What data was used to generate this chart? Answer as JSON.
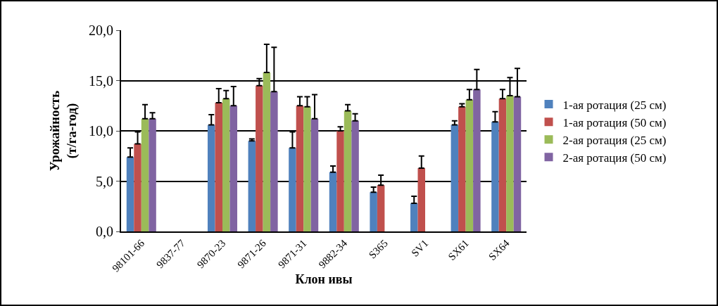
{
  "chart_data": {
    "type": "bar",
    "xlabel": "Клон ивы",
    "ylabel": "Урожайность\n(т/га-год)",
    "categories": [
      "98101-66",
      "9837-77",
      "9870-23",
      "9871-26",
      "9871-31",
      "9882-34",
      "S365",
      "SV1",
      "SX61",
      "SX64"
    ],
    "series": [
      {
        "name": "1-ая ротация (25 см)",
        "color": "#4f81bd",
        "values": [
          7.4,
          null,
          10.6,
          9.0,
          8.3,
          5.9,
          3.9,
          2.8,
          10.6,
          10.9
        ],
        "errors": [
          [
            7.4,
            8.3
          ],
          null,
          [
            10.6,
            11.6
          ],
          [
            9.0,
            9.2
          ],
          [
            8.3,
            9.9
          ],
          [
            5.9,
            6.5
          ],
          [
            3.9,
            4.4
          ],
          [
            2.8,
            3.5
          ],
          [
            10.6,
            11.0
          ],
          [
            10.9,
            11.9
          ]
        ]
      },
      {
        "name": "1-ая ротация (50 см)",
        "color": "#c0504d",
        "values": [
          8.7,
          null,
          12.8,
          14.5,
          12.5,
          10.0,
          4.6,
          6.3,
          12.4,
          13.2
        ],
        "errors": [
          [
            8.7,
            9.9
          ],
          null,
          [
            12.8,
            14.2
          ],
          [
            14.5,
            15.2
          ],
          [
            12.5,
            13.4
          ],
          [
            10.0,
            10.4
          ],
          [
            4.6,
            5.6
          ],
          [
            6.3,
            7.5
          ],
          [
            12.4,
            12.7
          ],
          [
            13.2,
            14.1
          ]
        ]
      },
      {
        "name": "2-ая ротация (25 см)",
        "color": "#9bbb59",
        "values": [
          11.2,
          null,
          13.2,
          15.8,
          12.4,
          12.0,
          null,
          null,
          13.1,
          13.5
        ],
        "errors": [
          [
            11.2,
            12.6
          ],
          null,
          [
            13.2,
            14.0
          ],
          [
            15.8,
            18.6
          ],
          [
            12.4,
            13.4
          ],
          [
            12.0,
            12.6
          ],
          null,
          null,
          [
            13.1,
            14.1
          ],
          [
            13.5,
            15.3
          ]
        ]
      },
      {
        "name": "2-ая ротация (50 см)",
        "color": "#8064a2",
        "values": [
          11.2,
          null,
          12.5,
          13.9,
          11.2,
          11.0,
          null,
          null,
          14.1,
          13.4
        ],
        "errors": [
          [
            11.2,
            11.8
          ],
          null,
          [
            12.5,
            14.4
          ],
          [
            13.9,
            18.3
          ],
          [
            11.2,
            13.6
          ],
          [
            11.0,
            11.7
          ],
          null,
          null,
          [
            14.1,
            16.1
          ],
          [
            13.4,
            16.2
          ]
        ]
      }
    ],
    "ylim": [
      0,
      20
    ],
    "yticks": [
      {
        "value": 0,
        "label": "0,0"
      },
      {
        "value": 5,
        "label": "5,0"
      },
      {
        "value": 10,
        "label": "10,0"
      },
      {
        "value": 15,
        "label": "15,0"
      },
      {
        "value": 20,
        "label": "20,0"
      }
    ],
    "grid": "y",
    "legend": "right"
  }
}
